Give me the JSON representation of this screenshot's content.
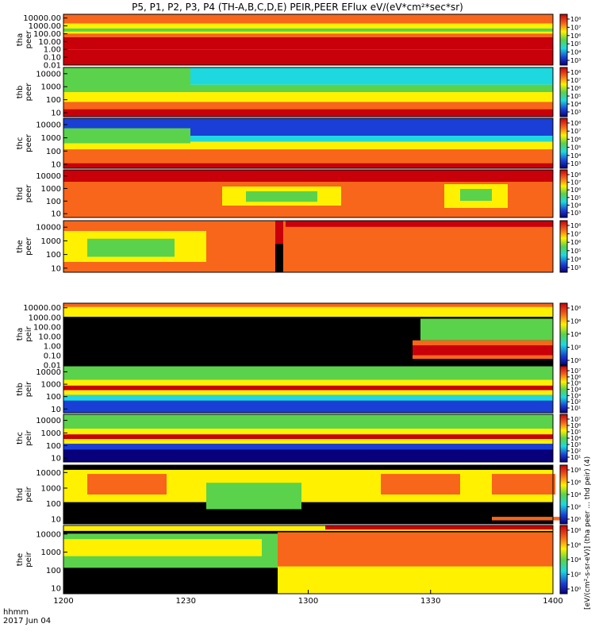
{
  "title": "P5, P1, P2, P3, P4 (TH-A,B,C,D,E) PEIR,PEER EFlux eV/(eV*cm²*sec*sr)",
  "x_axis": {
    "row1": "hhmm",
    "row2": "2017 Jun 04",
    "ticks": [
      "1200",
      "1230",
      "1300",
      "1330",
      "1400"
    ]
  },
  "colorbar_units": "[eV/(cm²-s-sr-eV)] (tha peer ... thd peir) (4)",
  "colors": {
    "background": "#ffffff",
    "panel_black": "#000000",
    "red": "#c8000a",
    "orange": "#f7661b",
    "yellow": "#fff100",
    "green": "#5bd24b",
    "cyan": "#1ed8e0",
    "blue": "#1a3fd6",
    "navy": "#08007a"
  },
  "chart_data": [
    {
      "type": "heatmap",
      "panel": "tha peer",
      "ylabel": [
        "tha",
        "peer"
      ],
      "y_ticks": [
        "10000.00",
        "1000.00",
        "100.00",
        "10.00",
        "1.00",
        "0.10",
        "0.01"
      ],
      "colorbar_ticks": [
        "10⁸",
        "10⁷",
        "10⁶",
        "10⁵",
        "10⁴",
        "10³"
      ],
      "y_range": [
        0.01,
        30000
      ],
      "y_scale": "log",
      "x_range": [
        "1200",
        "1400"
      ]
    },
    {
      "type": "heatmap",
      "panel": "thb peer",
      "ylabel": [
        "thb",
        "peer"
      ],
      "y_ticks": [
        "10000",
        "1000",
        "100",
        "10"
      ],
      "colorbar_ticks": [
        "10⁸",
        "10⁷",
        "10⁶",
        "10⁵",
        "10⁴",
        "10³"
      ],
      "y_range": [
        5,
        30000
      ],
      "y_scale": "log",
      "x_range": [
        "1200",
        "1400"
      ]
    },
    {
      "type": "heatmap",
      "panel": "thc peer",
      "ylabel": [
        "thc",
        "peer"
      ],
      "y_ticks": [
        "10000",
        "1000",
        "100",
        "10"
      ],
      "colorbar_ticks": [
        "10⁸",
        "10⁷",
        "10⁶",
        "10⁵",
        "10⁴",
        "10³"
      ],
      "y_range": [
        5,
        30000
      ],
      "y_scale": "log",
      "x_range": [
        "1200",
        "1400"
      ]
    },
    {
      "type": "heatmap",
      "panel": "thd peer",
      "ylabel": [
        "thd",
        "peer"
      ],
      "y_ticks": [
        "10000",
        "1000",
        "100",
        "10"
      ],
      "colorbar_ticks": [
        "10⁸",
        "10⁷",
        "10⁶",
        "10⁵",
        "10⁴",
        "10³"
      ],
      "y_range": [
        5,
        30000
      ],
      "y_scale": "log",
      "x_range": [
        "1200",
        "1400"
      ]
    },
    {
      "type": "heatmap",
      "panel": "the peer",
      "ylabel": [
        "the",
        "peer"
      ],
      "y_ticks": [
        "10000",
        "1000",
        "100",
        "10"
      ],
      "colorbar_ticks": [
        "10⁸",
        "10⁷",
        "10⁶",
        "10⁵",
        "10⁴",
        "10³"
      ],
      "y_range": [
        5,
        30000
      ],
      "y_scale": "log",
      "x_range": [
        "1200",
        "1400"
      ]
    },
    {
      "type": "heatmap",
      "panel": "tha peir",
      "ylabel": [
        "tha",
        "peir"
      ],
      "y_ticks": [
        "10000.00",
        "1000.00",
        "100.00",
        "10.00",
        "1.00",
        "0.10",
        "0.01"
      ],
      "colorbar_ticks": [
        "10⁸",
        "10⁶",
        "10⁴",
        "10²",
        "10⁰"
      ],
      "y_range": [
        0.01,
        30000
      ],
      "y_scale": "log",
      "x_range": [
        "1200",
        "1400"
      ]
    },
    {
      "type": "heatmap",
      "panel": "thb peir",
      "ylabel": [
        "thb",
        "peir"
      ],
      "y_ticks": [
        "10000",
        "1000",
        "100",
        "10"
      ],
      "colorbar_ticks": [
        "10⁷",
        "10⁶",
        "10⁵",
        "10⁴",
        "10³",
        "10²",
        "10¹"
      ],
      "y_range": [
        5,
        30000
      ],
      "y_scale": "log",
      "x_range": [
        "1200",
        "1400"
      ]
    },
    {
      "type": "heatmap",
      "panel": "thc peir",
      "ylabel": [
        "thc",
        "peir"
      ],
      "y_ticks": [
        "10000",
        "1000",
        "100",
        "10"
      ],
      "colorbar_ticks": [
        "10⁷",
        "10⁶",
        "10⁵",
        "10⁴",
        "10³",
        "10²",
        "10¹"
      ],
      "y_range": [
        5,
        30000
      ],
      "y_scale": "log",
      "x_range": [
        "1200",
        "1400"
      ]
    },
    {
      "type": "heatmap",
      "panel": "thd peir",
      "ylabel": [
        "thd",
        "peir"
      ],
      "y_ticks": [
        "10000",
        "1000",
        "100",
        "10"
      ],
      "colorbar_ticks": [
        "10⁸",
        "10⁶",
        "10⁴",
        "10²",
        "10⁰"
      ],
      "y_range": [
        5,
        30000
      ],
      "y_scale": "log",
      "x_range": [
        "1200",
        "1400"
      ]
    },
    {
      "type": "heatmap",
      "panel": "the peir",
      "ylabel": [
        "the",
        "peir"
      ],
      "y_ticks": [
        "10000",
        "1000",
        "100",
        "10"
      ],
      "colorbar_ticks": [
        "10⁸",
        "10⁶",
        "10⁴",
        "10²",
        "10⁰"
      ],
      "y_range": [
        5,
        30000
      ],
      "y_scale": "log",
      "x_range": [
        "1200",
        "1400"
      ]
    }
  ]
}
